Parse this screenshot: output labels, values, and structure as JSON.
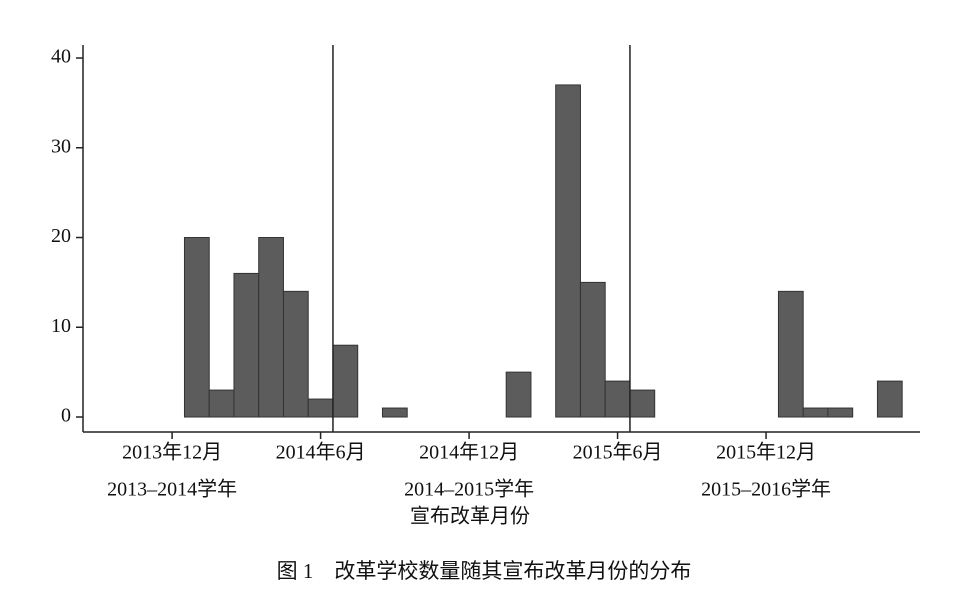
{
  "chart_data": {
    "type": "histogram",
    "caption": "图 1　改革学校数量随其宣布改革月份的分布",
    "x_label": "宣布改革月份",
    "bins": [
      0.5,
      1.5,
      2.5,
      3.5,
      4.5,
      5.5,
      6.5,
      7.5,
      8.5,
      9.5,
      10.5,
      11.5,
      12.5,
      13.5,
      14.5,
      15.5,
      16.5,
      17.5,
      18.5,
      19.5,
      20.5,
      21.5,
      22.5,
      23.5,
      24.5,
      25.5,
      26.5,
      27.5,
      28.5,
      29.5
    ],
    "values": [
      20,
      3,
      16,
      20,
      14,
      2,
      8,
      0,
      1,
      0,
      0,
      0,
      0,
      5,
      0,
      37,
      15,
      4,
      3,
      0,
      0,
      0,
      0,
      0,
      14,
      1,
      1,
      0,
      4
    ],
    "color": "#5c5c5c",
    "xlim": [
      -3.6,
      30.22
    ],
    "xticks": [
      {
        "value": 0,
        "label": "2013年12月"
      },
      {
        "value": 6,
        "label": "2014年6月"
      },
      {
        "value": 12,
        "label": "2014年12月"
      },
      {
        "value": 18,
        "label": "2015年6月"
      },
      {
        "value": 24,
        "label": "2015年12月"
      }
    ],
    "ylim": [
      -1.67,
      41.45
    ],
    "yticks": [
      0,
      10,
      20,
      30,
      40
    ],
    "vlines": [
      6.5,
      18.5
    ],
    "annotations": [
      "2013–2014学年",
      "2014–2015学年",
      "2015–2016学年"
    ]
  }
}
